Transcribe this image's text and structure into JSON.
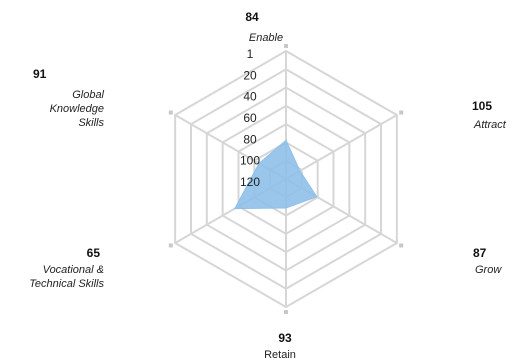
{
  "chart_data": {
    "type": "radar",
    "scale_reversed": true,
    "scale_min": 1,
    "scale_max": 120,
    "tick_labels": [
      "1",
      "20",
      "40",
      "60",
      "80",
      "100",
      "120"
    ],
    "axes": [
      {
        "name": "Enable",
        "lines": [
          "Enable"
        ],
        "score": "84",
        "value": 84
      },
      {
        "name": "Attract",
        "lines": [
          "Attract"
        ],
        "score": "105",
        "value": 105
      },
      {
        "name": "Grow",
        "lines": [
          "Grow"
        ],
        "score": "87",
        "value": 87
      },
      {
        "name": "Retain",
        "lines": [
          "Retain"
        ],
        "score": "93",
        "value": 93
      },
      {
        "name": "Vocational & Technical Skills",
        "lines": [
          "Vocational &",
          "Technical Skills"
        ],
        "score": "65",
        "value": 65
      },
      {
        "name": "Global Knowledge Skills",
        "lines": [
          "Global",
          "Knowledge",
          "Skills"
        ],
        "score": "91",
        "value": 91
      }
    ],
    "fill_color": "#8fc0ea",
    "grid_color": "#d6d6d6",
    "marker_color": "#c8c8c8"
  }
}
